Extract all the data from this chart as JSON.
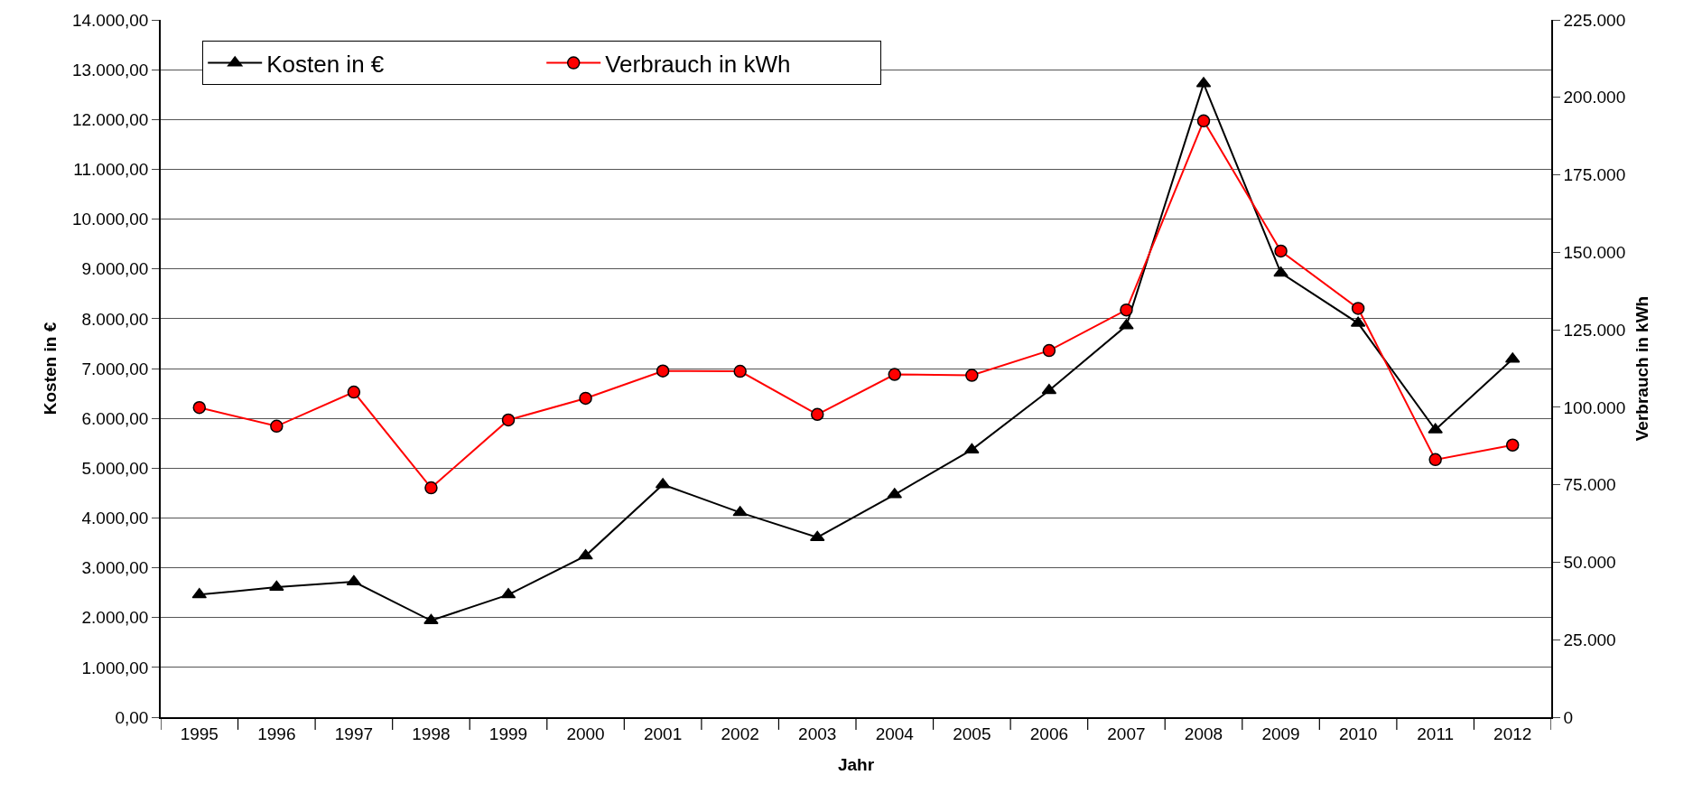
{
  "chart_data": {
    "type": "line",
    "xlabel": "Jahr",
    "ylabel": "Kosten in €",
    "y2label": "Verbrauch in kWh",
    "categories": [
      "1995",
      "1996",
      "1997",
      "1998",
      "1999",
      "2000",
      "2001",
      "2002",
      "2003",
      "2004",
      "2005",
      "2006",
      "2007",
      "2008",
      "2009",
      "2010",
      "2011",
      "2012"
    ],
    "series": [
      {
        "name": "Kosten in €",
        "color": "#000000",
        "marker": "triangle",
        "values": [
          2460,
          2610,
          2720,
          1940,
          2460,
          3240,
          4670,
          4110,
          3610,
          4470,
          5370,
          6560,
          7860,
          12720,
          8920,
          7910,
          5770,
          7190
        ]
      },
      {
        "name": "Verbrauch in kWh",
        "color": "#ff0000",
        "marker": "circle",
        "axis": "y2",
        "values": [
          99900,
          93900,
          104900,
          74000,
          95900,
          102900,
          111700,
          111600,
          97700,
          110600,
          110300,
          118300,
          131400,
          192400,
          150400,
          131900,
          83100,
          87800
        ]
      }
    ],
    "ylim": [
      0,
      14000
    ],
    "yticks": [
      {
        "value": 0,
        "label": "0,00"
      },
      {
        "value": 1000,
        "label": "1.000,00"
      },
      {
        "value": 2000,
        "label": "2.000,00"
      },
      {
        "value": 3000,
        "label": "3.000,00"
      },
      {
        "value": 4000,
        "label": "4.000,00"
      },
      {
        "value": 5000,
        "label": "5.000,00"
      },
      {
        "value": 6000,
        "label": "6.000,00"
      },
      {
        "value": 7000,
        "label": "7.000,00"
      },
      {
        "value": 8000,
        "label": "8.000,00"
      },
      {
        "value": 9000,
        "label": "9.000,00"
      },
      {
        "value": 10000,
        "label": "10.000,00"
      },
      {
        "value": 11000,
        "label": "11.000,00"
      },
      {
        "value": 12000,
        "label": "12.000,00"
      },
      {
        "value": 13000,
        "label": "13.000,00"
      },
      {
        "value": 14000,
        "label": "14.000,00"
      }
    ],
    "y2lim": [
      0,
      225000
    ],
    "y2ticks": [
      0,
      {
        "value": 25000,
        "label": "25.000"
      },
      {
        "value": 50000,
        "label": "50.000"
      },
      {
        "value": 75000,
        "label": "75.000"
      },
      {
        "value": 100000,
        "label": "100.000"
      },
      {
        "value": 125000,
        "label": "125.000"
      },
      {
        "value": 150000,
        "label": "150.000"
      },
      {
        "value": 175000,
        "label": "175.000"
      },
      {
        "value": 200000,
        "label": "200.000"
      },
      {
        "value": 225000,
        "label": "225.000"
      }
    ],
    "grid": "y",
    "legend": "top left",
    "line_style": "solid"
  }
}
